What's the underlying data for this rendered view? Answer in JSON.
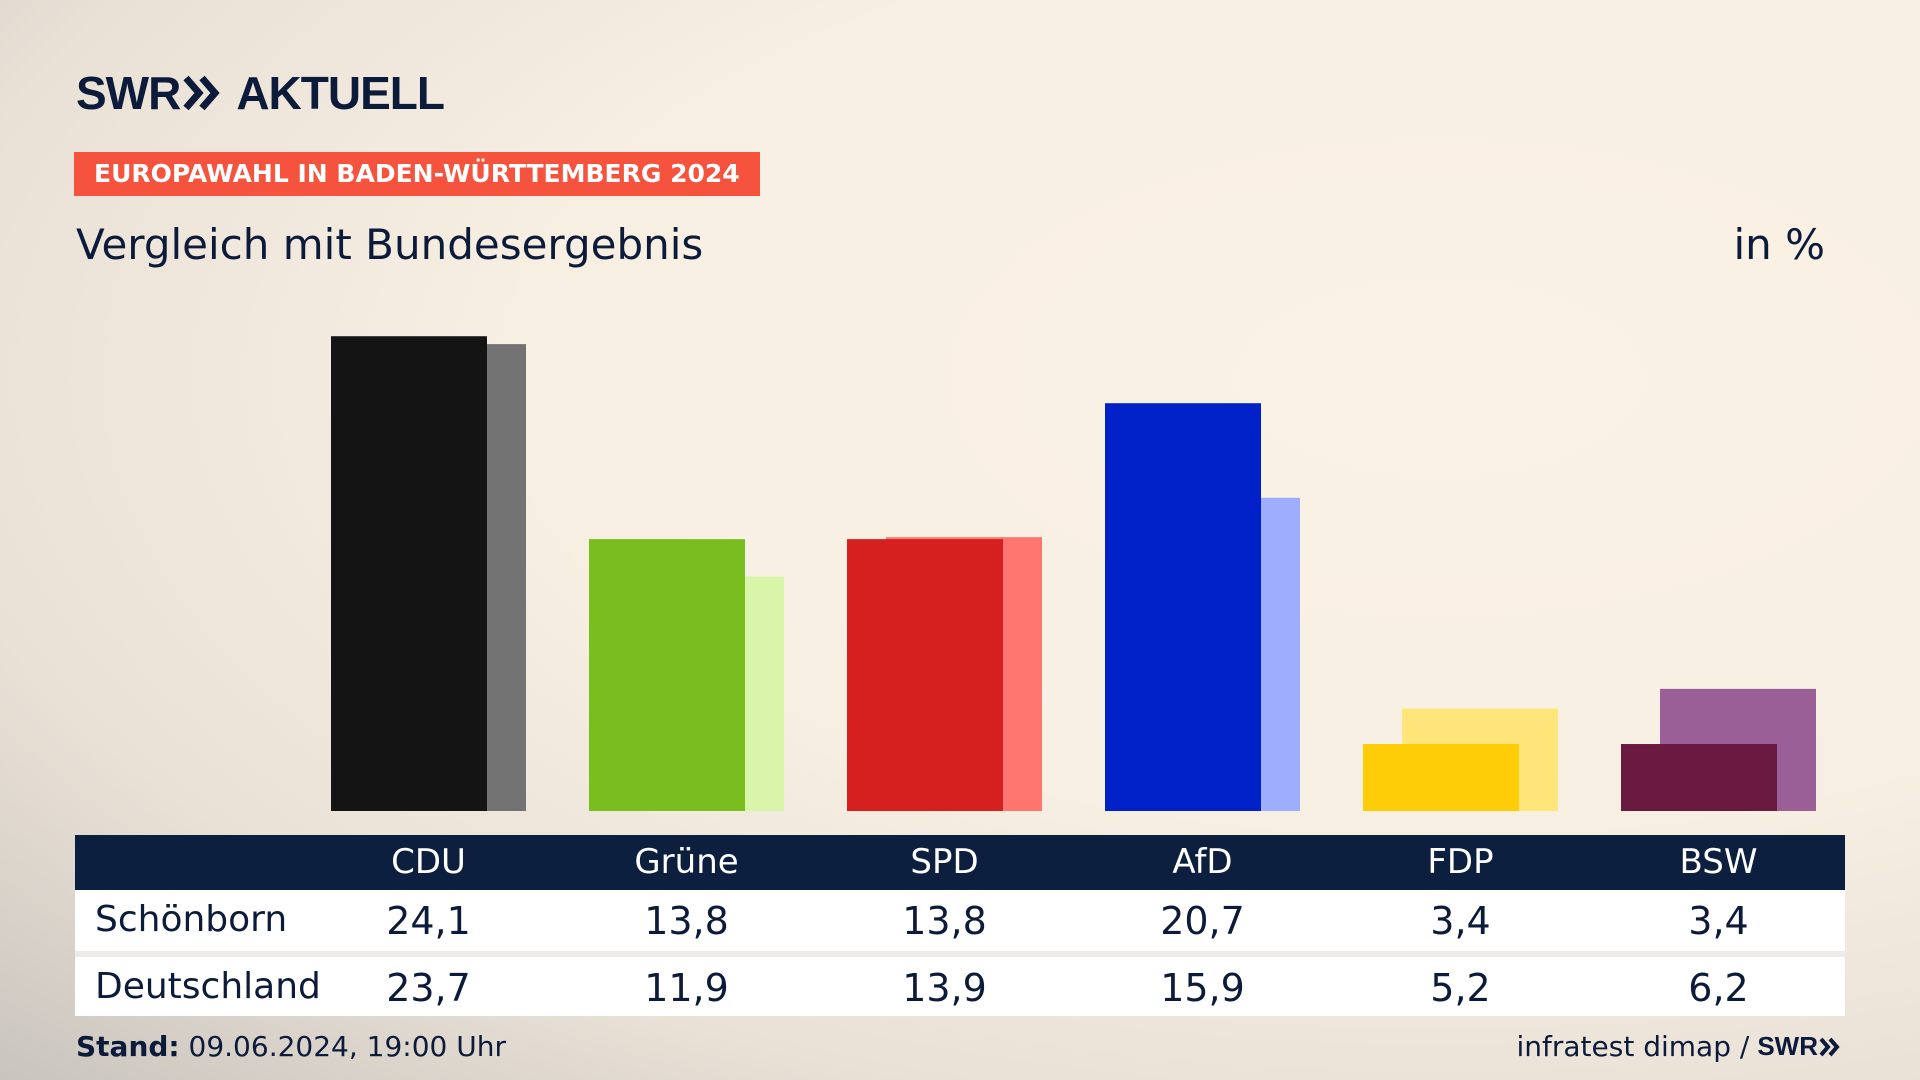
{
  "brand": {
    "logo_left": "SWR",
    "logo_right": "AKTUELL",
    "source_logo": "SWR"
  },
  "tag": "EUROPAWAHL IN BADEN-WÜRTTEMBERG 2024",
  "subtitle": "Vergleich mit Bundesergebnis",
  "unit": "in %",
  "footer": {
    "stand_label": "Stand:",
    "stand_value": "09.06.2024, 19:00 Uhr",
    "source_text": "infratest dimap /"
  },
  "table": {
    "row1_label": "Schönborn",
    "row2_label": "Deutschland"
  },
  "chart_data": {
    "type": "bar",
    "categories": [
      "CDU",
      "Grüne",
      "SPD",
      "AfD",
      "FDP",
      "BSW"
    ],
    "series": [
      {
        "name": "Schönborn",
        "values": [
          "24,1",
          "13,8",
          "13,8",
          "20,7",
          "3,4",
          "3,4"
        ],
        "colors": [
          "#141414",
          "#79bd1e",
          "#d61f1f",
          "#0020c8",
          "#ffcc08",
          "#6a1940"
        ]
      },
      {
        "name": "Deutschland",
        "values": [
          "23,7",
          "11,9",
          "13,9",
          "15,9",
          "5,2",
          "6,2"
        ],
        "colors": [
          "#737373",
          "#d8f5aa",
          "#ff7570",
          "#9fadff",
          "#ffe57a",
          "#9b5f98"
        ]
      }
    ],
    "ylim": [
      0,
      25
    ]
  }
}
